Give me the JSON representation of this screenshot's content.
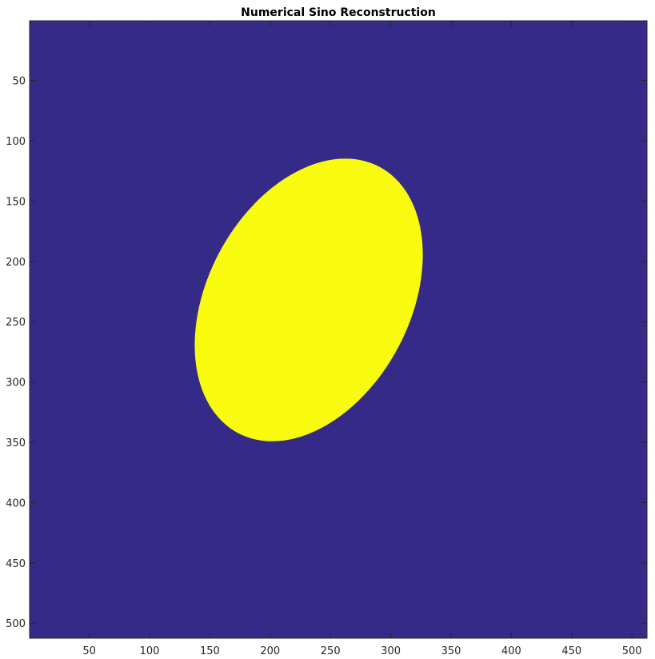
{
  "chart_data": {
    "type": "heatmap",
    "title": "Numerical Sino Reconstruction",
    "xlabel": "",
    "ylabel": "",
    "xlim": [
      0.5,
      512.5
    ],
    "ylim": [
      0.5,
      512.5
    ],
    "y_direction": "reversed",
    "x_ticks": [
      50,
      100,
      150,
      200,
      250,
      300,
      350,
      400,
      450,
      500
    ],
    "y_ticks": [
      50,
      100,
      150,
      200,
      250,
      300,
      350,
      400,
      450,
      500
    ],
    "grid": false,
    "colormap": "parula",
    "background_value_color": "#352a87",
    "feature_value_color": "#f9fb0e",
    "features": [
      {
        "shape": "ellipse",
        "center": [
          232,
          232
        ],
        "extent_x": [
          140,
          324
        ],
        "extent_y": [
          113,
          350
        ],
        "semi_major": 125,
        "semi_minor": 84,
        "rotation_deg": -62
      }
    ]
  }
}
